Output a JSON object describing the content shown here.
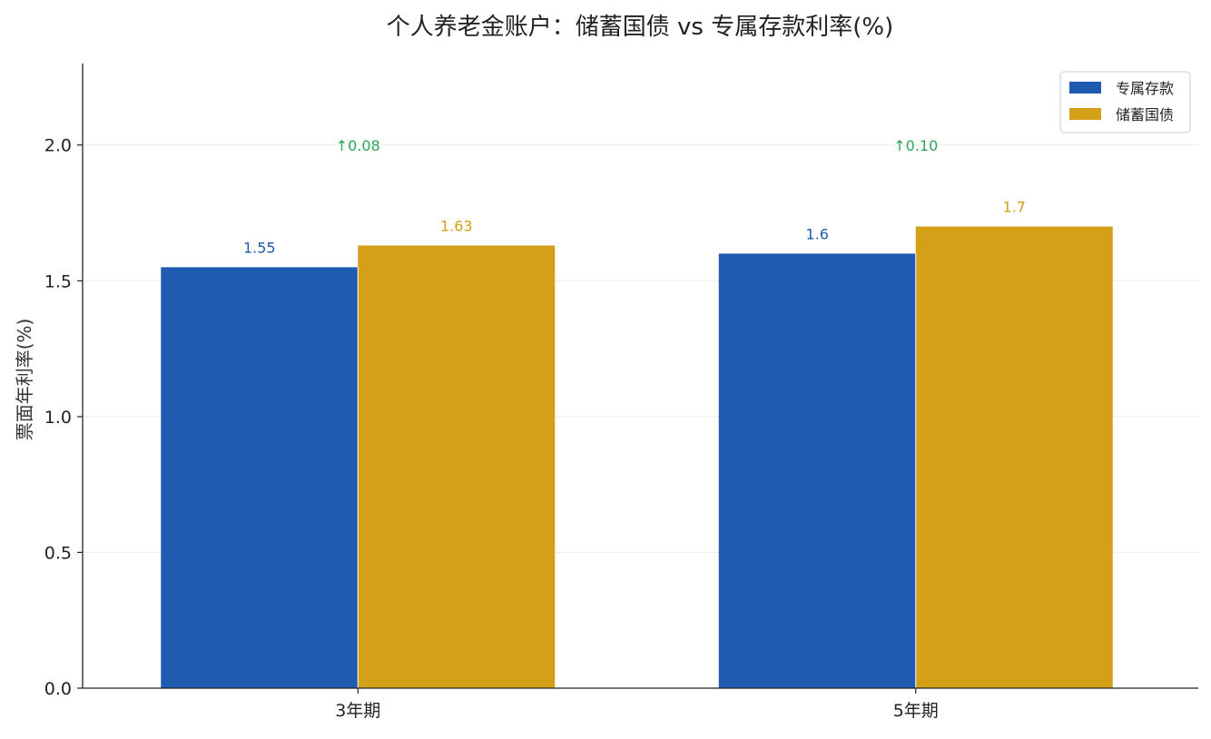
{
  "chart_data": {
    "type": "bar",
    "title": "个人养老金账户：储蓄国债 vs 专属存款利率(%)",
    "xlabel": "",
    "ylabel": "票面年利率(%)",
    "categories": [
      "3年期",
      "5年期"
    ],
    "series": [
      {
        "name": "专属存款",
        "values": [
          1.55,
          1.6
        ],
        "value_labels": [
          "1.55",
          "1.6"
        ],
        "color": "#1f5bb0"
      },
      {
        "name": "储蓄国债",
        "values": [
          1.63,
          1.7
        ],
        "value_labels": [
          "1.63",
          "1.7"
        ],
        "color": "#d4a017"
      }
    ],
    "differences": [
      {
        "category": "3年期",
        "label": "↑0.08",
        "value": 0.08
      },
      {
        "category": "5年期",
        "label": "↑0.10",
        "value": 0.1
      }
    ],
    "difference_color": "#2ca55a",
    "ylim": [
      0,
      2.3
    ],
    "yticks": [
      0.0,
      0.5,
      1.0,
      1.5,
      2.0
    ],
    "ytick_labels": [
      "0.0",
      "0.5",
      "1.0",
      "1.5",
      "2.0"
    ],
    "grid": true,
    "legend_position": "top-right"
  }
}
